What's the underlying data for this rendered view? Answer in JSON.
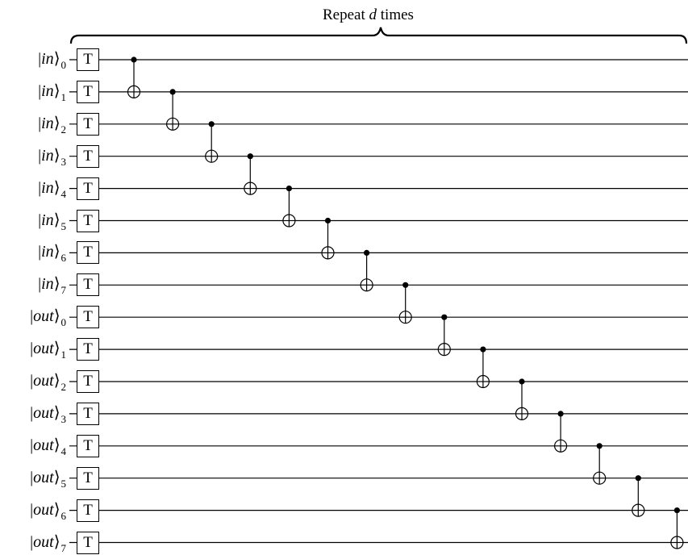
{
  "repeat": {
    "prefix": "Repeat",
    "variable": "d",
    "suffix": "times"
  },
  "gate_label": "T",
  "wires": [
    {
      "name": "in",
      "index": "0"
    },
    {
      "name": "in",
      "index": "1"
    },
    {
      "name": "in",
      "index": "2"
    },
    {
      "name": "in",
      "index": "3"
    },
    {
      "name": "in",
      "index": "4"
    },
    {
      "name": "in",
      "index": "5"
    },
    {
      "name": "in",
      "index": "6"
    },
    {
      "name": "in",
      "index": "7"
    },
    {
      "name": "out",
      "index": "0"
    },
    {
      "name": "out",
      "index": "1"
    },
    {
      "name": "out",
      "index": "2"
    },
    {
      "name": "out",
      "index": "3"
    },
    {
      "name": "out",
      "index": "4"
    },
    {
      "name": "out",
      "index": "5"
    },
    {
      "name": "out",
      "index": "6"
    },
    {
      "name": "out",
      "index": "7"
    }
  ],
  "cnots": [
    {
      "control": 0,
      "target": 1
    },
    {
      "control": 1,
      "target": 2
    },
    {
      "control": 2,
      "target": 3
    },
    {
      "control": 3,
      "target": 4
    },
    {
      "control": 4,
      "target": 5
    },
    {
      "control": 5,
      "target": 6
    },
    {
      "control": 6,
      "target": 7
    },
    {
      "control": 7,
      "target": 8
    },
    {
      "control": 8,
      "target": 9
    },
    {
      "control": 9,
      "target": 10
    },
    {
      "control": 10,
      "target": 11
    },
    {
      "control": 11,
      "target": 12
    },
    {
      "control": 12,
      "target": 13
    },
    {
      "control": 13,
      "target": 14
    },
    {
      "control": 14,
      "target": 15
    }
  ]
}
